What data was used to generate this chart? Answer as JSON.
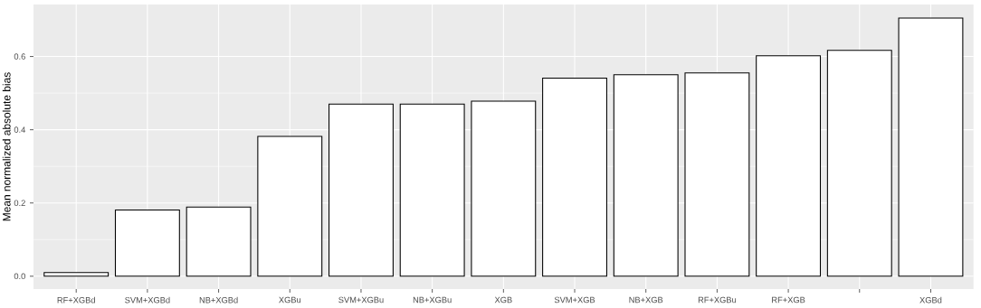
{
  "chart_data": {
    "type": "bar",
    "ylabel": "Mean normalized absolute bias",
    "categories": [
      "RF+XGBd",
      "SVM+XGBd",
      "NB+XGBd",
      "XGBu",
      "SVM+XGBu",
      "NB+XGBu",
      "XGB",
      "SVM+XGB",
      "NB+XGB",
      "RF+XGBu",
      "RF+XGB",
      null,
      "XGBd"
    ],
    "values": [
      0.01,
      0.181,
      0.189,
      0.382,
      0.47,
      0.47,
      0.478,
      0.541,
      0.55,
      0.555,
      0.602,
      0.617,
      0.705
    ],
    "color": "#ffffff",
    "ylim": [
      -0.035,
      0.742
    ],
    "yticks": [
      {
        "value": 0.0,
        "label": "0.0"
      },
      {
        "value": 0.2,
        "label": "0.2"
      },
      {
        "value": 0.4,
        "label": "0.4"
      },
      {
        "value": 0.6,
        "label": "0.6"
      }
    ],
    "grid": true
  }
}
